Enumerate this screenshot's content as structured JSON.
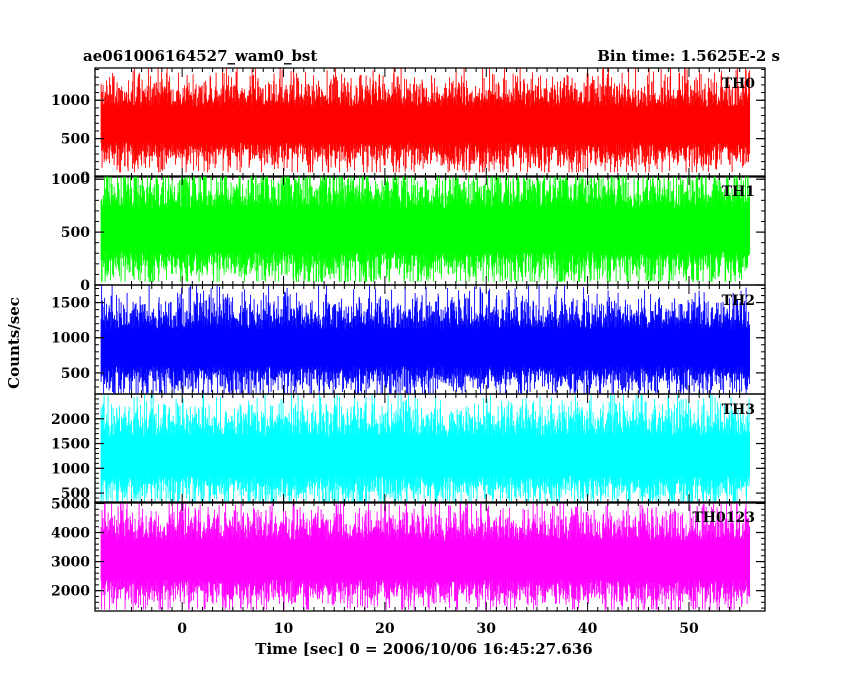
{
  "header": {
    "title": "ae061006164527_wam0_bst",
    "bin_time": "Bin time: 1.5625E-2 s"
  },
  "chart_data": {
    "type": "line",
    "xlabel": "Time [sec] 0 = 2006/10/06 16:45:27.636",
    "ylabel": "Counts/sec",
    "xlim": [
      -8.6,
      57.5
    ],
    "x_range": [
      -8.0,
      56.0
    ],
    "x_ticks": [
      0,
      10,
      20,
      30,
      40,
      50
    ],
    "grid": false,
    "panels": [
      {
        "name": "TH0",
        "color": "#ff0000",
        "ylim": [
          0,
          1420
        ],
        "yticks": [
          0,
          500,
          1000
        ],
        "mean": 680,
        "spread": 230,
        "min": 60,
        "max": 1420
      },
      {
        "name": "TH1",
        "color": "#00ff00",
        "ylim": [
          0,
          1030
        ],
        "yticks": [
          0,
          500,
          1000
        ],
        "mean": 520,
        "spread": 200,
        "min": 30,
        "max": 1030
      },
      {
        "name": "TH2",
        "color": "#0000ff",
        "ylim": [
          200,
          1750
        ],
        "yticks": [
          500,
          1000,
          1500
        ],
        "mean": 860,
        "spread": 260,
        "min": 210,
        "max": 1750
      },
      {
        "name": "TH3",
        "color": "#00ffff",
        "ylim": [
          300,
          2500
        ],
        "yticks": [
          500,
          1000,
          1500,
          2000
        ],
        "mean": 1250,
        "spread": 390,
        "min": 320,
        "max": 2480
      },
      {
        "name": "TH0123",
        "color": "#ff00ff",
        "ylim": [
          1300,
          5050
        ],
        "yticks": [
          2000,
          3000,
          4000,
          5000
        ],
        "mean": 3050,
        "spread": 650,
        "min": 1350,
        "max": 5000
      }
    ]
  }
}
